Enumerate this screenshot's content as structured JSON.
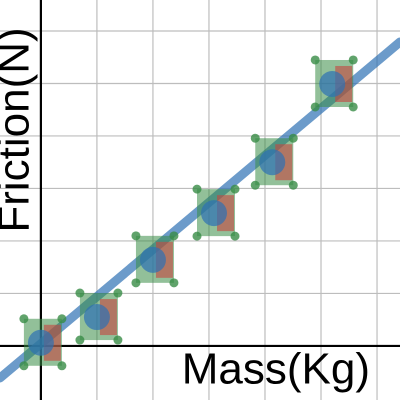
{
  "chart_data": {
    "type": "scatter",
    "x_label": "Mass(Kg)",
    "y_label": "Friction(N)",
    "xlim": [
      -0.73,
      6.41
    ],
    "ylim": [
      -1.03,
      6.59
    ],
    "xticks": [
      1,
      2,
      3,
      4,
      5,
      6
    ],
    "yticks": [
      1,
      2,
      3,
      4,
      5,
      6
    ],
    "grid": true,
    "series": [
      {
        "color": "#2d70b3",
        "x": [
          0,
          1,
          2,
          3.09,
          4.13,
          5.2
        ],
        "values": [
          0.06,
          0.55,
          1.64,
          2.53,
          3.5,
          4.99
        ]
      }
    ],
    "fit_line": {
      "color": "#2d70b3",
      "x": [
        -0.73,
        6.41
      ],
      "values": [
        -0.61,
        5.79
      ]
    }
  }
}
